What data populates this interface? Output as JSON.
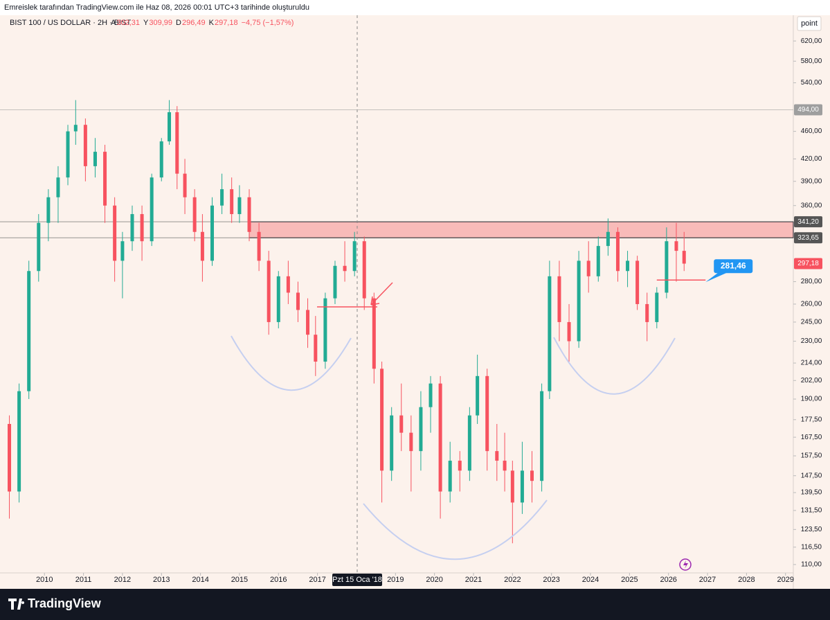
{
  "attribution": "Emreislek tarafından TradingView.com ile Haz 08, 2026 00:01 UTC+3 tarihinde oluşturuldu",
  "brand": "TradingView",
  "chart_data": {
    "type": "candlestick",
    "symbol": "BIST 100 / US DOLLAR · 2H · BIST",
    "legend_items": [
      {
        "key": "A",
        "text": "302,31"
      },
      {
        "key": "Y",
        "text": "309,99"
      },
      {
        "key": "D",
        "text": "296,49"
      },
      {
        "key": "K",
        "text": "297,18"
      }
    ],
    "change": "−4,75 (−1,57%)",
    "unit": "point",
    "crosshair_label": "Pzt 15 Oca '18",
    "log_scale": true,
    "up_color": "#22ab94",
    "down_color": "#f7525f",
    "xlim": [
      2008.86,
      2029.2
    ],
    "xticks": [
      2010,
      2011,
      2012,
      2013,
      2014,
      2015,
      2016,
      2017,
      2019,
      2020,
      2021,
      2022,
      2023,
      2024,
      2025,
      2026,
      2027,
      2028,
      2029
    ],
    "ylim": [
      107,
      675
    ],
    "yticks": [
      {
        "value": 620,
        "label": "620,00"
      },
      {
        "value": 580,
        "label": "580,00"
      },
      {
        "value": 540,
        "label": "540,00"
      },
      {
        "value": 460,
        "label": "460,00"
      },
      {
        "value": 420,
        "label": "420,00"
      },
      {
        "value": 390,
        "label": "390,00"
      },
      {
        "value": 360,
        "label": "360,00"
      },
      {
        "value": 280,
        "label": "280,00"
      },
      {
        "value": 260,
        "label": "260,00"
      },
      {
        "value": 245,
        "label": "245,00"
      },
      {
        "value": 230,
        "label": "230,00"
      },
      {
        "value": 214,
        "label": "214,00"
      },
      {
        "value": 202,
        "label": "202,00"
      },
      {
        "value": 190,
        "label": "190,00"
      },
      {
        "value": 177.5,
        "label": "177,50"
      },
      {
        "value": 167.5,
        "label": "167,50"
      },
      {
        "value": 157.5,
        "label": "157,50"
      },
      {
        "value": 147.5,
        "label": "147,50"
      },
      {
        "value": 139.5,
        "label": "139,50"
      },
      {
        "value": 131.5,
        "label": "131,50"
      },
      {
        "value": 123.5,
        "label": "123,50"
      },
      {
        "value": 116.5,
        "label": "116,50"
      },
      {
        "value": 110,
        "label": "110,00"
      }
    ],
    "price_lines": [
      {
        "value": 494,
        "label": "494,00",
        "color": "#9e9e9e"
      },
      {
        "value": 341.2,
        "label": "341,20",
        "color": "#555555"
      },
      {
        "value": 323.65,
        "label": "323,65",
        "color": "#555555"
      },
      {
        "value": 297.18,
        "label": "297,18",
        "color": "#f7525f"
      }
    ],
    "zone_start": 2015.25,
    "target": {
      "value": 281.46,
      "label": "281,46",
      "start": 2025.7,
      "end": 2026.95,
      "color": "#2196f3"
    },
    "x": [
      2009.1,
      2009.35,
      2009.6,
      2009.85,
      2010.1,
      2010.35,
      2010.6,
      2010.8,
      2011.05,
      2011.3,
      2011.55,
      2011.8,
      2012.0,
      2012.25,
      2012.5,
      2012.75,
      2013.0,
      2013.2,
      2013.4,
      2013.6,
      2013.85,
      2014.05,
      2014.3,
      2014.55,
      2014.8,
      2015.0,
      2015.25,
      2015.5,
      2015.75,
      2016.0,
      2016.25,
      2016.5,
      2016.75,
      2016.95,
      2017.2,
      2017.45,
      2017.7,
      2017.95,
      2018.2,
      2018.45,
      2018.65,
      2018.9,
      2019.15,
      2019.4,
      2019.65,
      2019.9,
      2020.15,
      2020.4,
      2020.65,
      2020.9,
      2021.1,
      2021.35,
      2021.6,
      2021.8,
      2022.0,
      2022.25,
      2022.5,
      2022.75,
      2022.95,
      2023.2,
      2023.45,
      2023.7,
      2023.95,
      2024.2,
      2024.45,
      2024.7,
      2024.95,
      2025.2,
      2025.45,
      2025.7,
      2025.95,
      2026.2,
      2026.4
    ],
    "open": [
      175,
      140,
      195,
      290,
      340,
      370,
      395,
      460,
      470,
      410,
      430,
      360,
      300,
      320,
      350,
      320,
      395,
      445,
      490,
      400,
      370,
      330,
      300,
      360,
      380,
      350,
      370,
      330,
      300,
      245,
      285,
      270,
      255,
      235,
      215,
      265,
      295,
      290,
      320,
      265,
      210,
      150,
      180,
      170,
      160,
      185,
      200,
      140,
      155,
      150,
      180,
      205,
      160,
      155,
      150,
      135,
      150,
      145,
      195,
      285,
      245,
      230,
      300,
      285,
      315,
      330,
      290,
      300,
      260,
      245,
      270,
      320,
      310
    ],
    "high": [
      180,
      200,
      300,
      350,
      380,
      410,
      470,
      510,
      480,
      450,
      440,
      370,
      330,
      360,
      360,
      400,
      450,
      510,
      500,
      420,
      380,
      350,
      370,
      400,
      395,
      385,
      380,
      340,
      310,
      290,
      300,
      280,
      265,
      250,
      270,
      300,
      320,
      330,
      325,
      270,
      215,
      185,
      200,
      180,
      195,
      205,
      205,
      165,
      160,
      185,
      220,
      210,
      175,
      170,
      155,
      165,
      160,
      200,
      300,
      300,
      260,
      310,
      320,
      325,
      345,
      335,
      310,
      305,
      270,
      275,
      335,
      340,
      330
    ],
    "low": [
      128,
      135,
      190,
      280,
      320,
      340,
      385,
      440,
      390,
      395,
      340,
      280,
      265,
      310,
      300,
      315,
      390,
      440,
      380,
      350,
      320,
      280,
      295,
      350,
      340,
      340,
      320,
      290,
      235,
      240,
      260,
      245,
      225,
      205,
      210,
      260,
      280,
      285,
      255,
      200,
      135,
      145,
      160,
      140,
      150,
      170,
      128,
      135,
      140,
      145,
      175,
      150,
      145,
      140,
      118,
      130,
      135,
      140,
      190,
      230,
      215,
      225,
      270,
      280,
      305,
      280,
      275,
      255,
      230,
      240,
      265,
      280,
      290
    ],
    "close": [
      140,
      195,
      290,
      340,
      370,
      395,
      460,
      470,
      410,
      430,
      360,
      300,
      320,
      350,
      320,
      395,
      445,
      490,
      400,
      370,
      330,
      300,
      360,
      380,
      350,
      370,
      330,
      300,
      245,
      285,
      270,
      255,
      235,
      215,
      265,
      295,
      290,
      320,
      265,
      210,
      150,
      180,
      170,
      160,
      185,
      200,
      140,
      155,
      150,
      180,
      205,
      160,
      155,
      150,
      135,
      150,
      145,
      195,
      285,
      245,
      230,
      300,
      285,
      315,
      330,
      290,
      300,
      260,
      245,
      270,
      320,
      310,
      297.18
    ]
  }
}
